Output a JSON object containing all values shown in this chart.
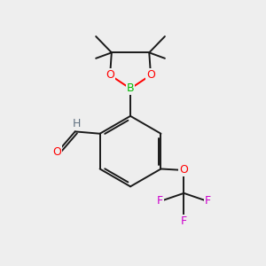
{
  "background_color": "#eeeeee",
  "bond_color": "#1a1a1a",
  "atom_colors": {
    "O": "#ff0000",
    "B": "#00bb00",
    "F": "#cc00cc",
    "C": "#1a1a1a",
    "H": "#607080"
  },
  "figsize": [
    3.0,
    3.0
  ],
  "dpi": 100
}
